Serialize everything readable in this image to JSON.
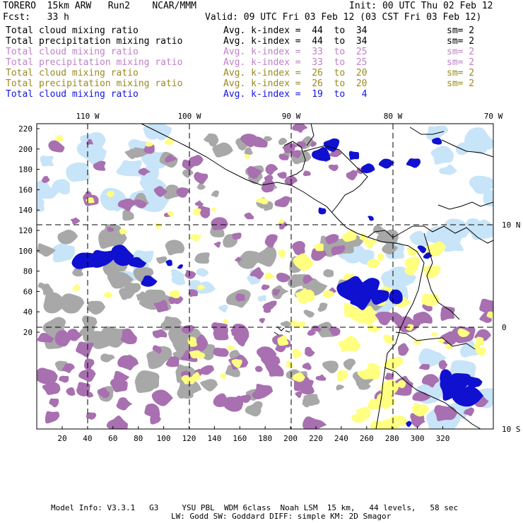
{
  "header": {
    "model": "TORERO  15km ARW   Run2    NCAR/MMM",
    "init": "Init: 00 UTC Thu 02 Feb 12",
    "fcst": "Fcst:   33 h",
    "valid": "Valid: 09 UTC Fri 03 Feb 12 (03 CST Fri 03 Feb 12)"
  },
  "legend": [
    {
      "label": "Total cloud mixing ratio",
      "index": "Avg. k-index =  44  to  34",
      "sm": "sm= 2",
      "color": "#000000"
    },
    {
      "label": "Total precipitation mixing ratio",
      "index": "Avg. k-index =  44  to  34",
      "sm": "sm= 2",
      "color": "#000000"
    },
    {
      "label": "Total cloud mixing ratio",
      "index": "Avg. k-index =  33  to  25",
      "sm": "sm= 2",
      "color": "#c080c8"
    },
    {
      "label": "Total precipitation mixing ratio",
      "index": "Avg. k-index =  33  to  25",
      "sm": "sm= 2",
      "color": "#c080c8"
    },
    {
      "label": "Total cloud mixing ratio",
      "index": "Avg. k-index =  26  to  20",
      "sm": "sm= 2",
      "color": "#9a8a20"
    },
    {
      "label": "Total precipitation mixing ratio",
      "index": "Avg. k-index =  26  to  20",
      "sm": "sm= 2",
      "color": "#9a8a20"
    },
    {
      "label": "Total cloud mixing ratio",
      "index": "Avg. k-index =  19  to   4",
      "sm": "",
      "color": "#1414e0"
    }
  ],
  "map": {
    "lon_labels": [
      "110 W",
      "100 W",
      "90 W",
      "80 W",
      "70 W"
    ],
    "lat_labels": [
      "10 N",
      "0",
      "10 S"
    ],
    "y_ticks": [
      "220",
      "200",
      "180",
      "160",
      "140",
      "120",
      "100",
      "80",
      "60",
      "40",
      "20"
    ],
    "x_ticks": [
      "20",
      "40",
      "60",
      "80",
      "100",
      "120",
      "140",
      "160",
      "180",
      "200",
      "220",
      "240",
      "260",
      "280",
      "300",
      "320"
    ],
    "colors": {
      "gray": "#a8a8a8",
      "purple": "#a870b0",
      "yellow": "#ffff80",
      "lightblue": "#c8e4f8",
      "blue": "#1010d0"
    }
  },
  "footer": {
    "line1": "Model Info: V3.3.1   G3     YSU PBL  WDM 6class  Noah LSM  15 km,   44 levels,   58 sec",
    "line2": "LW: Godd SW: Goddard DIFF: simple KM: 2D Smagor"
  }
}
